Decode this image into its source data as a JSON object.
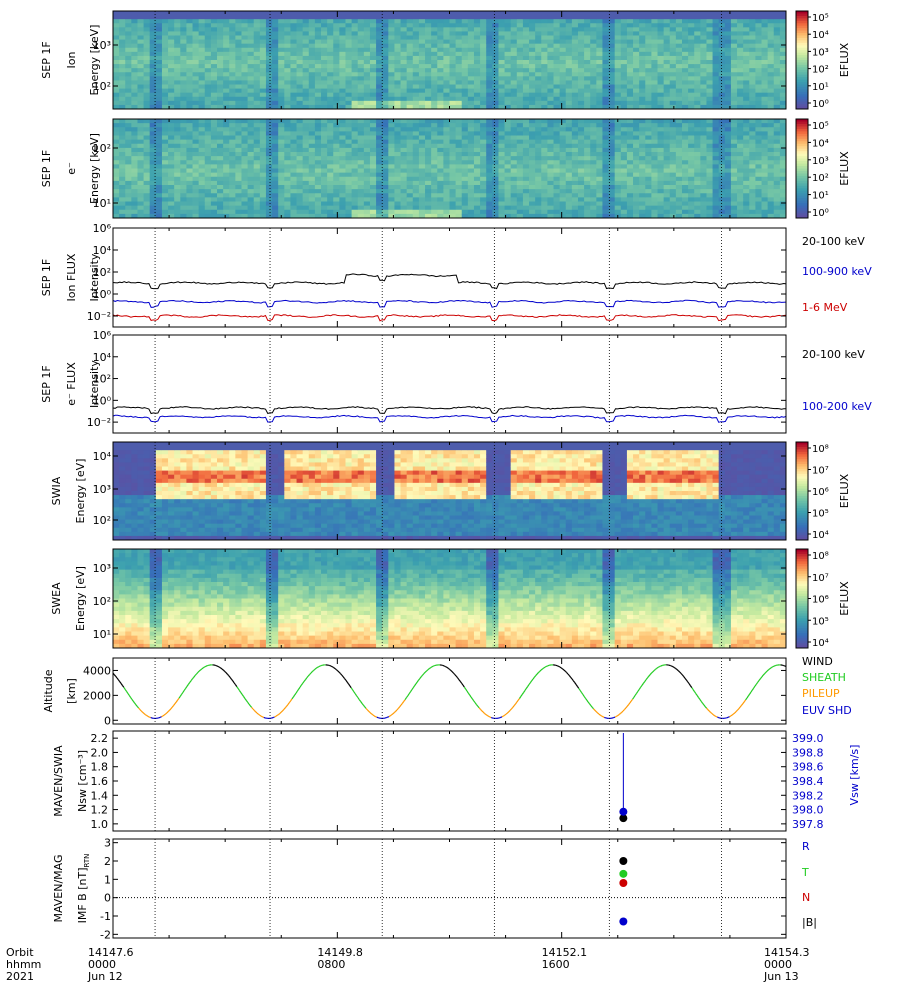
{
  "chart_data": {
    "type": "multi-panel time series",
    "time": {
      "orbit": {
        "label": "Orbit",
        "values": [
          "14147.6",
          "14149.8",
          "14152.1",
          "14154.3"
        ]
      },
      "hhmm": {
        "label": "hhmm",
        "values": [
          "0000",
          "0800",
          "1600",
          "0000"
        ]
      },
      "date": {
        "label": "2021",
        "values": [
          "Jun 12",
          "",
          "",
          "Jun 13"
        ]
      },
      "range_hours": [
        0,
        24
      ],
      "major_ticks_hours": [
        0,
        8,
        16,
        24
      ],
      "periapsis_hours": [
        1.5,
        5.6,
        9.6,
        13.6,
        17.7,
        21.7
      ]
    },
    "panels": [
      {
        "id": "sep-ion-energy",
        "type": "heatmap",
        "ylabel": [
          "SEP 1F",
          "Ion",
          "Energy [keV]"
        ],
        "ytick_labels": [
          "10³",
          "10²"
        ],
        "colorbar": {
          "label": "EFLUX",
          "ticks": [
            "10⁵",
            "10⁴",
            "10³",
            "10²",
            "10¹",
            "10⁰"
          ],
          "scale": "spectral"
        }
      },
      {
        "id": "sep-e-energy",
        "type": "heatmap",
        "ylabel": [
          "SEP 1F",
          "e⁻",
          "Energy [keV]"
        ],
        "ytick_labels": [
          "10²",
          "10¹"
        ],
        "colorbar": {
          "label": "EFLUX",
          "ticks": [
            "10⁵",
            "10⁴",
            "10³",
            "10²",
            "10¹",
            "10⁰"
          ],
          "scale": "spectral"
        }
      },
      {
        "id": "sep-ion-flux",
        "type": "line",
        "ylabel": [
          "SEP 1F",
          "Ion FLUX",
          "Intensity"
        ],
        "ytick_labels": [
          "10⁶",
          "10⁴",
          "10²",
          "10⁰",
          "10⁻²"
        ],
        "yscale": "log",
        "ylim_exp": [
          -3,
          6
        ],
        "series": [
          {
            "name": "20-100 keV",
            "color": "#000000",
            "level": 1.0
          },
          {
            "name": "100-900 keV",
            "color": "#0000cc",
            "level": -0.7
          },
          {
            "name": "1-6 MeV",
            "color": "#cc0000",
            "level": -2.0
          }
        ]
      },
      {
        "id": "sep-e-flux",
        "type": "line",
        "ylabel": [
          "SEP 1F",
          "e⁻ FLUX",
          "Intensity"
        ],
        "ytick_labels": [
          "10⁶",
          "10⁴",
          "10²",
          "10⁰",
          "10⁻²"
        ],
        "yscale": "log",
        "ylim_exp": [
          -3,
          6
        ],
        "series": [
          {
            "name": "20-100 keV",
            "color": "#000000",
            "level": -0.7
          },
          {
            "name": "100-200 keV",
            "color": "#0000cc",
            "level": -1.5
          }
        ]
      },
      {
        "id": "swia-energy",
        "type": "heatmap",
        "ylabel": [
          "SWIA",
          "Energy [eV]"
        ],
        "ytick_labels": [
          "10⁴",
          "10³",
          "10²"
        ],
        "colorbar": {
          "label": "EFLUX",
          "ticks": [
            "10⁸",
            "10⁷",
            "10⁶",
            "10⁵",
            "10⁴"
          ],
          "scale": "spectral"
        }
      },
      {
        "id": "swea-energy",
        "type": "heatmap",
        "ylabel": [
          "SWEA",
          "Energy [eV]"
        ],
        "ytick_labels": [
          "10³",
          "10²",
          "10¹"
        ],
        "colorbar": {
          "label": "EFLUX",
          "ticks": [
            "10⁸",
            "10⁷",
            "10⁶",
            "10⁵",
            "10⁴"
          ],
          "scale": "spectral"
        }
      },
      {
        "id": "altitude",
        "type": "line",
        "ylabel": [
          "Altitude",
          "[km]"
        ],
        "ytick_labels": [
          "4000",
          "2000",
          "0"
        ],
        "ylim": [
          -300,
          5000
        ],
        "orbit_min_km": 150,
        "orbit_max_km": 4450,
        "legend": [
          {
            "name": "WIND",
            "color": "#000000"
          },
          {
            "name": "SHEATH",
            "color": "#22cc22"
          },
          {
            "name": "PILEUP",
            "color": "#ff9900"
          },
          {
            "name": "EUV SHD",
            "color": "#0000cc"
          }
        ]
      },
      {
        "id": "swia-moments",
        "type": "scatter",
        "ylabel": [
          "MAVEN/SWIA",
          "Nsw [cm⁻³]"
        ],
        "ytick_labels": [
          "2.2",
          "2.0",
          "1.8",
          "1.6",
          "1.4",
          "1.2",
          "1.0"
        ],
        "ylim": [
          0.9,
          2.3
        ],
        "y2label": "Vsw [km/s]",
        "y2tick_labels": [
          "399.0",
          "398.8",
          "398.6",
          "398.4",
          "398.2",
          "398.0",
          "397.8"
        ],
        "y2lim": [
          397.7,
          399.1
        ],
        "points": [
          {
            "series": "Nsw",
            "x_hours": 18.2,
            "y": 1.08,
            "color": "#000000"
          },
          {
            "series": "Vsw",
            "x_hours": 18.2,
            "y": 1.17,
            "color": "#0000cc"
          }
        ]
      },
      {
        "id": "mag-imf",
        "type": "scatter",
        "ylabel": [
          "MAVEN/MAG",
          "IMF B [nT]"
        ],
        "ylabel_subscript": "RTN",
        "ytick_labels": [
          "3",
          "2",
          "1",
          "0",
          "-1",
          "-2"
        ],
        "ylim": [
          -2.2,
          3.2
        ],
        "legend": [
          {
            "name": "R",
            "color": "#0000cc"
          },
          {
            "name": "T",
            "color": "#22cc22"
          },
          {
            "name": "N",
            "color": "#cc0000"
          },
          {
            "name": "|B|",
            "color": "#000000"
          }
        ],
        "points": [
          {
            "series": "|B|",
            "x_hours": 18.2,
            "y": 2.0,
            "color": "#000000"
          },
          {
            "series": "T",
            "x_hours": 18.2,
            "y": 1.3,
            "color": "#22cc22"
          },
          {
            "series": "N",
            "x_hours": 18.2,
            "y": 0.8,
            "color": "#cc0000"
          },
          {
            "series": "R",
            "x_hours": 18.2,
            "y": -1.3,
            "color": "#0000cc"
          }
        ]
      }
    ]
  }
}
